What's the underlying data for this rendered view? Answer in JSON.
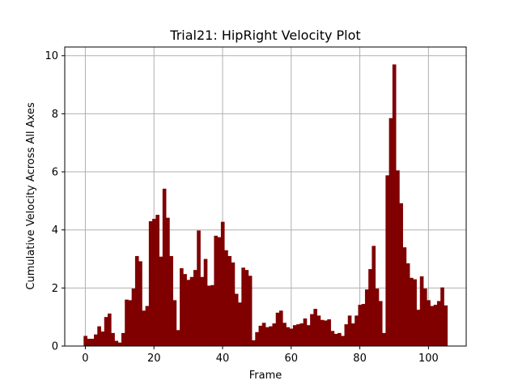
{
  "chart_data": {
    "type": "bar",
    "title": "Trial21: HipRight Velocity Plot",
    "xlabel": "Frame",
    "ylabel": "Cumulative Velocity Across All Axes",
    "xlim": [
      -6,
      111
    ],
    "ylim": [
      0,
      10.3
    ],
    "xticks": [
      0,
      20,
      40,
      60,
      80,
      100
    ],
    "yticks": [
      0,
      2,
      4,
      6,
      8,
      10
    ],
    "grid": true,
    "bar_color": "#800000",
    "x": [
      0,
      1,
      2,
      3,
      4,
      5,
      6,
      7,
      8,
      9,
      10,
      11,
      12,
      13,
      14,
      15,
      16,
      17,
      18,
      19,
      20,
      21,
      22,
      23,
      24,
      25,
      26,
      27,
      28,
      29,
      30,
      31,
      32,
      33,
      34,
      35,
      36,
      37,
      38,
      39,
      40,
      41,
      42,
      43,
      44,
      45,
      46,
      47,
      48,
      49,
      50,
      51,
      52,
      53,
      54,
      55,
      56,
      57,
      58,
      59,
      60,
      61,
      62,
      63,
      64,
      65,
      66,
      67,
      68,
      69,
      70,
      71,
      72,
      73,
      74,
      75,
      76,
      77,
      78,
      79,
      80,
      81,
      82,
      83,
      84,
      85,
      86,
      87,
      88,
      89,
      90,
      91,
      92,
      93,
      94,
      95,
      96,
      97,
      98,
      99,
      100,
      101,
      102,
      103,
      104,
      105
    ],
    "values": [
      0.35,
      0.25,
      0.25,
      0.4,
      0.68,
      0.5,
      1.0,
      1.12,
      0.45,
      0.18,
      0.12,
      0.45,
      1.6,
      1.58,
      1.98,
      3.1,
      2.92,
      1.22,
      1.38,
      4.3,
      4.38,
      4.52,
      3.08,
      5.42,
      4.42,
      3.1,
      1.58,
      0.55,
      2.68,
      2.48,
      2.28,
      2.38,
      2.62,
      3.98,
      2.38,
      3.0,
      2.08,
      2.1,
      3.8,
      3.75,
      4.28,
      3.3,
      3.1,
      2.88,
      1.8,
      1.5,
      2.7,
      2.62,
      2.42,
      0.2,
      0.48,
      0.7,
      0.8,
      0.65,
      0.68,
      0.78,
      1.15,
      1.22,
      0.8,
      0.65,
      0.6,
      0.72,
      0.75,
      0.78,
      0.95,
      0.72,
      1.1,
      1.28,
      1.05,
      0.9,
      0.88,
      0.92,
      0.52,
      0.42,
      0.45,
      0.35,
      0.75,
      1.05,
      0.78,
      1.05,
      1.42,
      1.45,
      1.95,
      2.65,
      3.45,
      1.98,
      1.55,
      0.45,
      5.88,
      7.85,
      9.7,
      6.05,
      4.92,
      3.4,
      2.85,
      2.35,
      2.3,
      1.25,
      2.4,
      1.98,
      1.58,
      1.38,
      1.42,
      1.55,
      2.02,
      1.4
    ]
  }
}
